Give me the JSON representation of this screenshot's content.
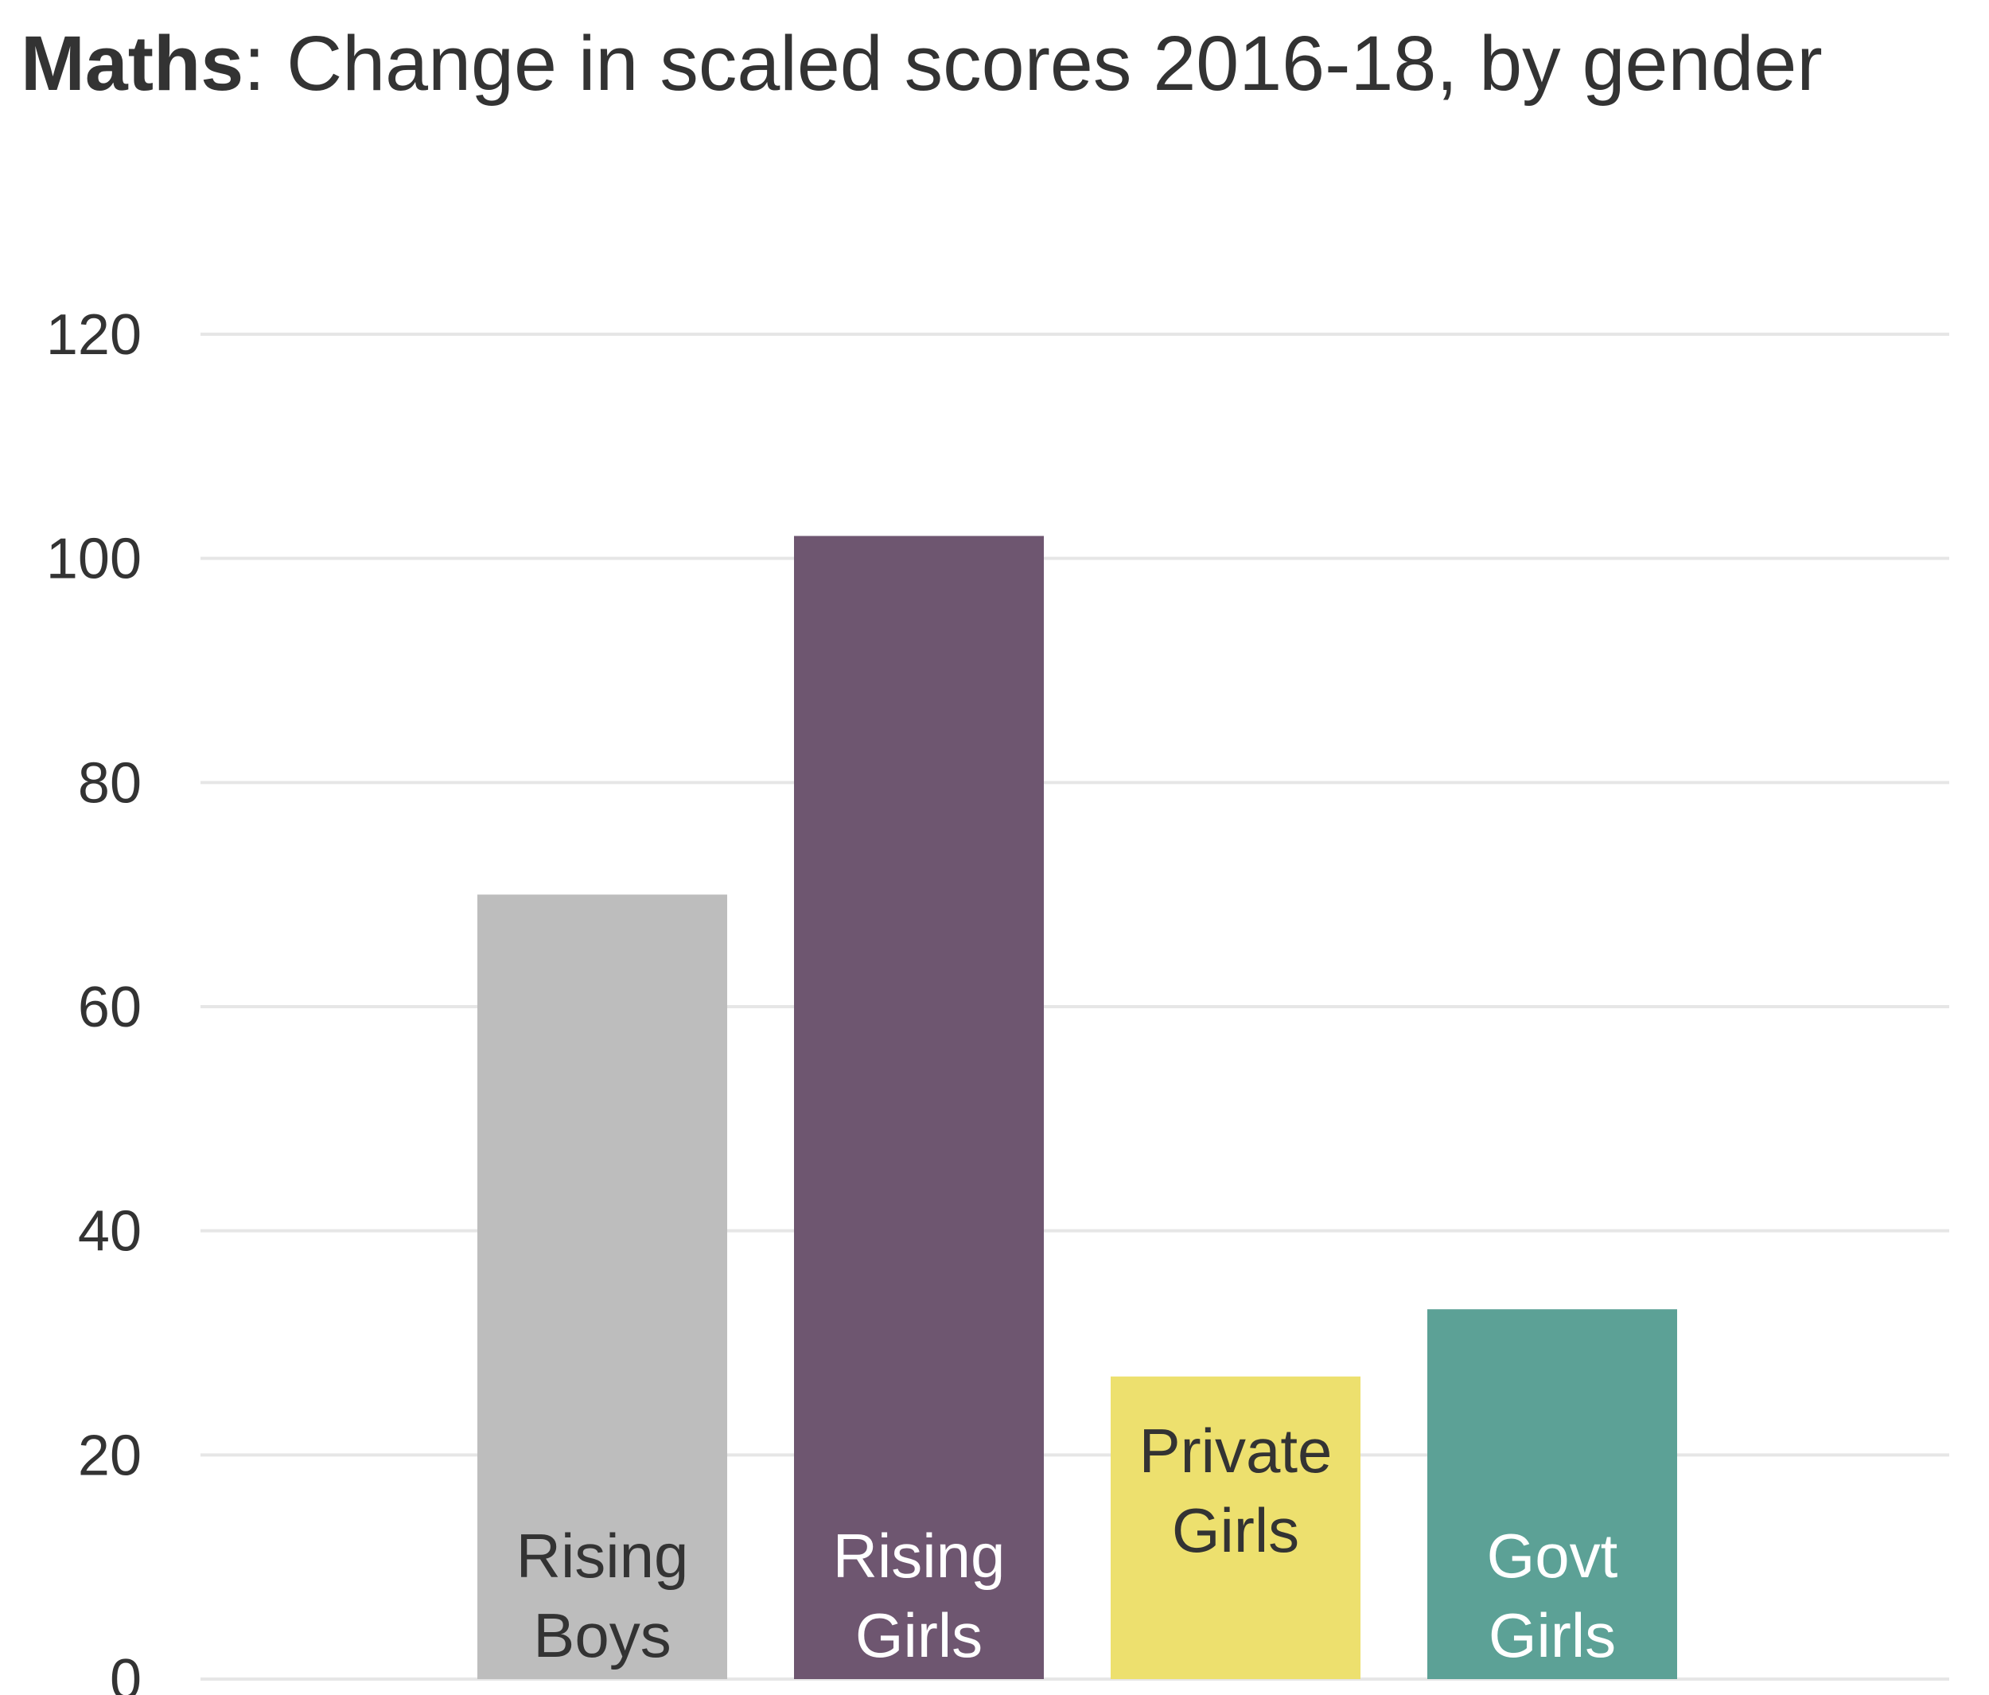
{
  "title": {
    "bold": "Maths",
    "rest": ": Change in scaled scores 2016-18, by gender"
  },
  "chart_data": {
    "type": "bar",
    "title": "Maths: Change in scaled scores 2016-18, by gender",
    "xlabel": "",
    "ylabel": "",
    "ylim": [
      0,
      120
    ],
    "yticks": [
      0,
      20,
      40,
      60,
      80,
      100,
      120
    ],
    "grid": true,
    "categories": [
      "Rising Boys",
      "Rising Girls",
      "Private Girls",
      "Govt Girls"
    ],
    "bar_labels": [
      [
        "Rising",
        "Boys"
      ],
      [
        "Rising",
        "Girls"
      ],
      [
        "Private",
        "Girls"
      ],
      [
        "Govt",
        "Girls"
      ]
    ],
    "values": [
      70,
      102,
      27,
      33
    ],
    "colors": [
      "#bdbdbd",
      "#6e5670",
      "#ede06e",
      "#5ca196"
    ],
    "label_colors": [
      "#333333",
      "#ffffff",
      "#333333",
      "#ffffff"
    ],
    "gridline_color": "#e6e6e6"
  }
}
